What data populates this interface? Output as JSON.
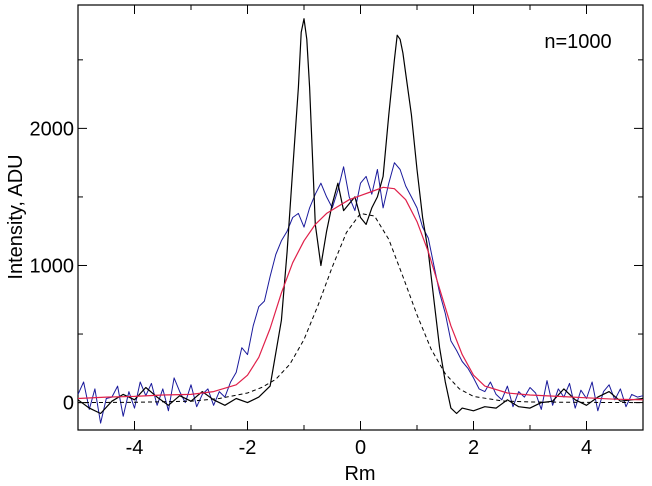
{
  "chart_data": {
    "type": "line",
    "title": "",
    "xlabel": "Rm",
    "ylabel": "Intensity, ADU",
    "annotation": "n=1000",
    "xlim": [
      -5,
      5
    ],
    "ylim": [
      -200,
      2900
    ],
    "x_ticks": [
      -4,
      -2,
      0,
      2,
      4
    ],
    "x_tick_labels": [
      "-4",
      "-2",
      "0",
      "2",
      "4"
    ],
    "y_ticks": [
      0,
      1000,
      2000
    ],
    "y_tick_labels": [
      "0",
      "1000",
      "2000"
    ],
    "grid": false,
    "legend": "none",
    "colors": {
      "black": "#000000",
      "blue": "#1a1a9c",
      "red": "#e0204a",
      "dashed": "#000000"
    },
    "series": [
      {
        "style": "black-solid",
        "x": [
          -5.0,
          -4.8,
          -4.6,
          -4.4,
          -4.2,
          -4.0,
          -3.8,
          -3.6,
          -3.4,
          -3.2,
          -3.0,
          -2.8,
          -2.6,
          -2.4,
          -2.2,
          -2.0,
          -1.8,
          -1.6,
          -1.4,
          -1.3,
          -1.2,
          -1.1,
          -1.05,
          -1.0,
          -0.95,
          -0.9,
          -0.8,
          -0.7,
          -0.6,
          -0.5,
          -0.4,
          -0.3,
          -0.2,
          -0.1,
          0.0,
          0.1,
          0.2,
          0.3,
          0.4,
          0.5,
          0.6,
          0.65,
          0.7,
          0.75,
          0.8,
          0.9,
          1.0,
          1.1,
          1.2,
          1.3,
          1.4,
          1.5,
          1.6,
          1.7,
          1.8,
          2.0,
          2.2,
          2.4,
          2.6,
          2.8,
          3.0,
          3.2,
          3.4,
          3.6,
          3.8,
          4.0,
          4.2,
          4.4,
          4.6,
          4.8,
          5.0
        ],
        "y": [
          20,
          -40,
          -80,
          10,
          60,
          20,
          110,
          40,
          -20,
          50,
          10,
          80,
          20,
          -20,
          30,
          0,
          40,
          120,
          600,
          1100,
          1700,
          2300,
          2700,
          2800,
          2650,
          2300,
          1300,
          1000,
          1250,
          1450,
          1600,
          1400,
          1450,
          1500,
          1350,
          1300,
          1420,
          1500,
          1650,
          2100,
          2500,
          2680,
          2650,
          2550,
          2400,
          2100,
          1700,
          1350,
          1100,
          750,
          400,
          150,
          -40,
          -80,
          -40,
          -60,
          -30,
          -40,
          20,
          -30,
          -40,
          0,
          10,
          100,
          20,
          -20,
          40,
          80,
          10,
          20,
          30
        ]
      },
      {
        "style": "blue-noisy",
        "x": [
          -5.0,
          -4.9,
          -4.8,
          -4.7,
          -4.6,
          -4.5,
          -4.4,
          -4.3,
          -4.2,
          -4.1,
          -4.0,
          -3.9,
          -3.8,
          -3.7,
          -3.6,
          -3.5,
          -3.4,
          -3.3,
          -3.2,
          -3.1,
          -3.0,
          -2.9,
          -2.8,
          -2.7,
          -2.6,
          -2.5,
          -2.4,
          -2.3,
          -2.2,
          -2.1,
          -2.0,
          -1.9,
          -1.8,
          -1.7,
          -1.6,
          -1.5,
          -1.4,
          -1.3,
          -1.2,
          -1.1,
          -1.0,
          -0.9,
          -0.8,
          -0.7,
          -0.6,
          -0.5,
          -0.4,
          -0.3,
          -0.2,
          -0.1,
          0.0,
          0.1,
          0.2,
          0.3,
          0.4,
          0.5,
          0.6,
          0.7,
          0.8,
          0.9,
          1.0,
          1.1,
          1.2,
          1.3,
          1.4,
          1.5,
          1.6,
          1.7,
          1.8,
          1.9,
          2.0,
          2.1,
          2.2,
          2.3,
          2.4,
          2.5,
          2.6,
          2.7,
          2.8,
          2.9,
          3.0,
          3.1,
          3.2,
          3.3,
          3.4,
          3.5,
          3.6,
          3.7,
          3.8,
          3.9,
          4.0,
          4.1,
          4.2,
          4.3,
          4.4,
          4.5,
          4.6,
          4.7,
          4.8,
          4.9,
          5.0
        ],
        "y": [
          60,
          150,
          -50,
          100,
          -150,
          30,
          40,
          120,
          -100,
          80,
          -40,
          150,
          50,
          140,
          -20,
          100,
          -60,
          180,
          80,
          0,
          130,
          -30,
          60,
          100,
          -20,
          80,
          40,
          150,
          220,
          400,
          350,
          560,
          700,
          740,
          920,
          1080,
          1180,
          1250,
          1350,
          1380,
          1280,
          1420,
          1520,
          1600,
          1500,
          1420,
          1550,
          1720,
          1500,
          1400,
          1600,
          1650,
          1520,
          1700,
          1420,
          1600,
          1750,
          1700,
          1580,
          1500,
          1420,
          1280,
          1200,
          1000,
          800,
          650,
          450,
          380,
          300,
          250,
          180,
          100,
          80,
          150,
          60,
          20,
          120,
          -30,
          80,
          40,
          110,
          70,
          -50,
          160,
          -20,
          100,
          40,
          140,
          -40,
          90,
          30,
          150,
          -60,
          80,
          130,
          20,
          100,
          -30,
          60,
          40,
          50
        ]
      },
      {
        "style": "red-smooth",
        "x": [
          -5.0,
          -4.5,
          -4.0,
          -3.5,
          -3.0,
          -2.6,
          -2.2,
          -2.0,
          -1.8,
          -1.6,
          -1.4,
          -1.2,
          -1.0,
          -0.8,
          -0.6,
          -0.4,
          -0.2,
          0.0,
          0.2,
          0.4,
          0.6,
          0.8,
          1.0,
          1.2,
          1.4,
          1.6,
          1.8,
          2.0,
          2.2,
          2.6,
          3.0,
          3.5,
          4.0,
          4.5,
          5.0
        ],
        "y": [
          30,
          40,
          45,
          55,
          60,
          80,
          130,
          200,
          330,
          540,
          800,
          1020,
          1180,
          1300,
          1380,
          1430,
          1480,
          1510,
          1540,
          1570,
          1560,
          1480,
          1320,
          1100,
          830,
          560,
          350,
          200,
          120,
          70,
          55,
          45,
          35,
          25,
          20
        ]
      },
      {
        "style": "black-dashed",
        "x": [
          -5.0,
          -4.0,
          -3.0,
          -2.5,
          -2.0,
          -1.75,
          -1.5,
          -1.25,
          -1.0,
          -0.75,
          -0.5,
          -0.25,
          0.0,
          0.25,
          0.5,
          0.75,
          1.0,
          1.25,
          1.5,
          1.75,
          2.0,
          2.5,
          3.0,
          4.0,
          5.0
        ],
        "y": [
          0,
          2,
          10,
          30,
          70,
          110,
          170,
          280,
          460,
          710,
          990,
          1240,
          1380,
          1360,
          1190,
          920,
          640,
          390,
          210,
          100,
          45,
          12,
          4,
          1,
          0
        ]
      }
    ]
  }
}
